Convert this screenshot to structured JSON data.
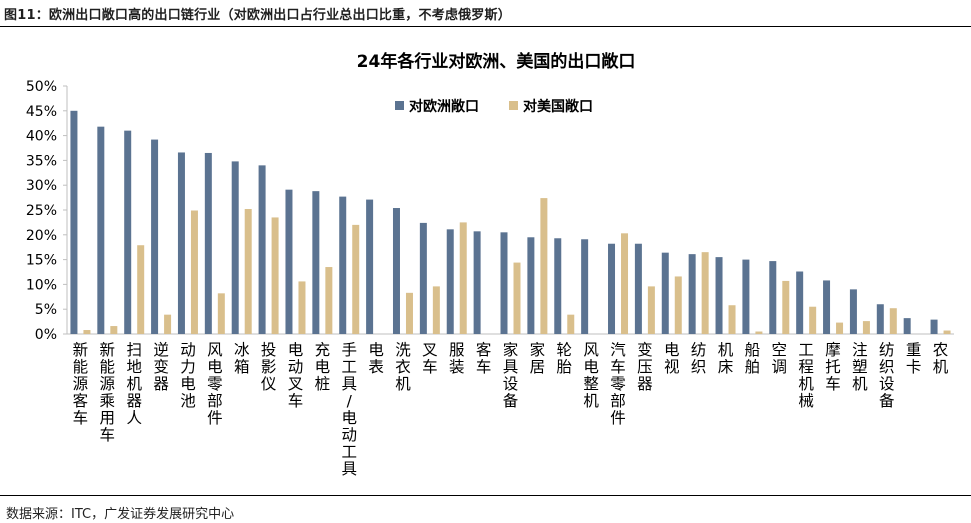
{
  "caption": "图11：欧洲出口敞口高的出口链行业（对欧洲出口占行业总出口比重，不考虑俄罗斯）",
  "source": "数据来源：ITC，广发证券发展研究中心",
  "colors": {
    "europe": "#5b7391",
    "us": "#d9bf8c",
    "axis": "#bfbfbf",
    "text": "#000000"
  },
  "chart_data": {
    "type": "bar",
    "title": "24年各行业对欧洲、美国的出口敞口",
    "xlabel": "",
    "ylabel": "",
    "ylim": [
      0,
      50
    ],
    "yticks": [
      0,
      5,
      10,
      15,
      20,
      25,
      30,
      35,
      40,
      45,
      50
    ],
    "ytick_labels": [
      "0%",
      "5%",
      "10%",
      "15%",
      "20%",
      "25%",
      "30%",
      "35%",
      "40%",
      "45%",
      "50%"
    ],
    "legend_position": "top-center",
    "categories": [
      "新能源客车",
      "新能源乘用车",
      "扫地机器人",
      "逆变器",
      "动力电池",
      "风电零部件",
      "冰箱",
      "投影仪",
      "电动叉车",
      "充电桩",
      "手工具/电动工具",
      "电表",
      "洗衣机",
      "叉车",
      "服装",
      "客车",
      "家具设备",
      "家居",
      "轮胎",
      "风电整机",
      "汽车零部件",
      "变压器",
      "电视",
      "纺织",
      "机床",
      "船舶",
      "空调",
      "工程机械",
      "摩托车",
      "注塑机",
      "纺织设备",
      "重卡",
      "农机"
    ],
    "series": [
      {
        "name": "对欧洲敞口",
        "values": [
          45.0,
          41.8,
          41.0,
          39.2,
          36.6,
          36.5,
          34.8,
          34.0,
          29.1,
          28.8,
          27.7,
          27.1,
          25.4,
          22.4,
          21.1,
          20.7,
          20.5,
          19.5,
          19.3,
          19.1,
          18.2,
          18.2,
          16.4,
          16.1,
          15.5,
          15.0,
          14.7,
          12.6,
          10.8,
          9.0,
          6.0,
          3.2,
          2.9
        ]
      },
      {
        "name": "对美国敞口",
        "values": [
          0.8,
          1.6,
          17.9,
          3.9,
          24.9,
          8.2,
          25.2,
          23.5,
          10.6,
          13.5,
          22.0,
          0.0,
          8.3,
          9.6,
          22.5,
          0.0,
          14.4,
          27.4,
          3.9,
          0.0,
          20.3,
          9.6,
          11.6,
          16.5,
          5.8,
          0.5,
          10.7,
          5.5,
          2.3,
          2.6,
          5.2,
          0.0,
          0.7
        ]
      }
    ]
  }
}
